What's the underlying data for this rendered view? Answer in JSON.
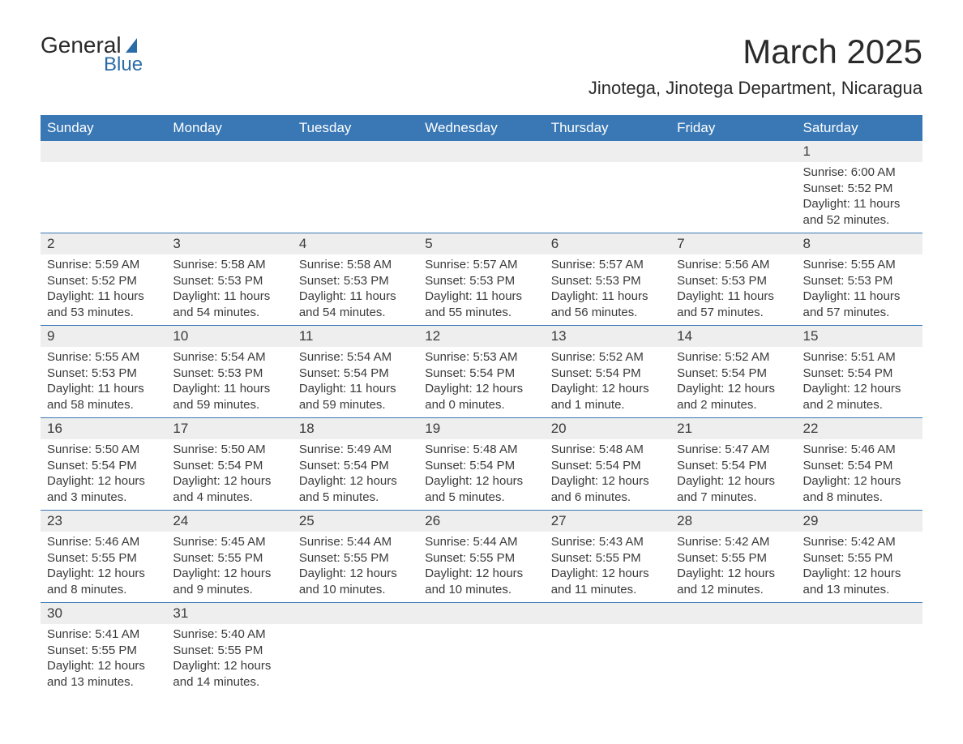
{
  "logo": {
    "word1": "General",
    "word2": "Blue"
  },
  "title": "March 2025",
  "location": "Jinotega, Jinotega Department, Nicaragua",
  "colors": {
    "header_bg": "#3978b5",
    "header_text": "#ffffff",
    "number_bg": "#eeeeee",
    "text": "#3a3a3a",
    "logo_blue": "#2b6ca8"
  },
  "day_names": [
    "Sunday",
    "Monday",
    "Tuesday",
    "Wednesday",
    "Thursday",
    "Friday",
    "Saturday"
  ],
  "weeks": [
    [
      null,
      null,
      null,
      null,
      null,
      null,
      {
        "num": "1",
        "sunrise": "Sunrise: 6:00 AM",
        "sunset": "Sunset: 5:52 PM",
        "daylight1": "Daylight: 11 hours",
        "daylight2": "and 52 minutes."
      }
    ],
    [
      {
        "num": "2",
        "sunrise": "Sunrise: 5:59 AM",
        "sunset": "Sunset: 5:52 PM",
        "daylight1": "Daylight: 11 hours",
        "daylight2": "and 53 minutes."
      },
      {
        "num": "3",
        "sunrise": "Sunrise: 5:58 AM",
        "sunset": "Sunset: 5:53 PM",
        "daylight1": "Daylight: 11 hours",
        "daylight2": "and 54 minutes."
      },
      {
        "num": "4",
        "sunrise": "Sunrise: 5:58 AM",
        "sunset": "Sunset: 5:53 PM",
        "daylight1": "Daylight: 11 hours",
        "daylight2": "and 54 minutes."
      },
      {
        "num": "5",
        "sunrise": "Sunrise: 5:57 AM",
        "sunset": "Sunset: 5:53 PM",
        "daylight1": "Daylight: 11 hours",
        "daylight2": "and 55 minutes."
      },
      {
        "num": "6",
        "sunrise": "Sunrise: 5:57 AM",
        "sunset": "Sunset: 5:53 PM",
        "daylight1": "Daylight: 11 hours",
        "daylight2": "and 56 minutes."
      },
      {
        "num": "7",
        "sunrise": "Sunrise: 5:56 AM",
        "sunset": "Sunset: 5:53 PM",
        "daylight1": "Daylight: 11 hours",
        "daylight2": "and 57 minutes."
      },
      {
        "num": "8",
        "sunrise": "Sunrise: 5:55 AM",
        "sunset": "Sunset: 5:53 PM",
        "daylight1": "Daylight: 11 hours",
        "daylight2": "and 57 minutes."
      }
    ],
    [
      {
        "num": "9",
        "sunrise": "Sunrise: 5:55 AM",
        "sunset": "Sunset: 5:53 PM",
        "daylight1": "Daylight: 11 hours",
        "daylight2": "and 58 minutes."
      },
      {
        "num": "10",
        "sunrise": "Sunrise: 5:54 AM",
        "sunset": "Sunset: 5:53 PM",
        "daylight1": "Daylight: 11 hours",
        "daylight2": "and 59 minutes."
      },
      {
        "num": "11",
        "sunrise": "Sunrise: 5:54 AM",
        "sunset": "Sunset: 5:54 PM",
        "daylight1": "Daylight: 11 hours",
        "daylight2": "and 59 minutes."
      },
      {
        "num": "12",
        "sunrise": "Sunrise: 5:53 AM",
        "sunset": "Sunset: 5:54 PM",
        "daylight1": "Daylight: 12 hours",
        "daylight2": "and 0 minutes."
      },
      {
        "num": "13",
        "sunrise": "Sunrise: 5:52 AM",
        "sunset": "Sunset: 5:54 PM",
        "daylight1": "Daylight: 12 hours",
        "daylight2": "and 1 minute."
      },
      {
        "num": "14",
        "sunrise": "Sunrise: 5:52 AM",
        "sunset": "Sunset: 5:54 PM",
        "daylight1": "Daylight: 12 hours",
        "daylight2": "and 2 minutes."
      },
      {
        "num": "15",
        "sunrise": "Sunrise: 5:51 AM",
        "sunset": "Sunset: 5:54 PM",
        "daylight1": "Daylight: 12 hours",
        "daylight2": "and 2 minutes."
      }
    ],
    [
      {
        "num": "16",
        "sunrise": "Sunrise: 5:50 AM",
        "sunset": "Sunset: 5:54 PM",
        "daylight1": "Daylight: 12 hours",
        "daylight2": "and 3 minutes."
      },
      {
        "num": "17",
        "sunrise": "Sunrise: 5:50 AM",
        "sunset": "Sunset: 5:54 PM",
        "daylight1": "Daylight: 12 hours",
        "daylight2": "and 4 minutes."
      },
      {
        "num": "18",
        "sunrise": "Sunrise: 5:49 AM",
        "sunset": "Sunset: 5:54 PM",
        "daylight1": "Daylight: 12 hours",
        "daylight2": "and 5 minutes."
      },
      {
        "num": "19",
        "sunrise": "Sunrise: 5:48 AM",
        "sunset": "Sunset: 5:54 PM",
        "daylight1": "Daylight: 12 hours",
        "daylight2": "and 5 minutes."
      },
      {
        "num": "20",
        "sunrise": "Sunrise: 5:48 AM",
        "sunset": "Sunset: 5:54 PM",
        "daylight1": "Daylight: 12 hours",
        "daylight2": "and 6 minutes."
      },
      {
        "num": "21",
        "sunrise": "Sunrise: 5:47 AM",
        "sunset": "Sunset: 5:54 PM",
        "daylight1": "Daylight: 12 hours",
        "daylight2": "and 7 minutes."
      },
      {
        "num": "22",
        "sunrise": "Sunrise: 5:46 AM",
        "sunset": "Sunset: 5:54 PM",
        "daylight1": "Daylight: 12 hours",
        "daylight2": "and 8 minutes."
      }
    ],
    [
      {
        "num": "23",
        "sunrise": "Sunrise: 5:46 AM",
        "sunset": "Sunset: 5:55 PM",
        "daylight1": "Daylight: 12 hours",
        "daylight2": "and 8 minutes."
      },
      {
        "num": "24",
        "sunrise": "Sunrise: 5:45 AM",
        "sunset": "Sunset: 5:55 PM",
        "daylight1": "Daylight: 12 hours",
        "daylight2": "and 9 minutes."
      },
      {
        "num": "25",
        "sunrise": "Sunrise: 5:44 AM",
        "sunset": "Sunset: 5:55 PM",
        "daylight1": "Daylight: 12 hours",
        "daylight2": "and 10 minutes."
      },
      {
        "num": "26",
        "sunrise": "Sunrise: 5:44 AM",
        "sunset": "Sunset: 5:55 PM",
        "daylight1": "Daylight: 12 hours",
        "daylight2": "and 10 minutes."
      },
      {
        "num": "27",
        "sunrise": "Sunrise: 5:43 AM",
        "sunset": "Sunset: 5:55 PM",
        "daylight1": "Daylight: 12 hours",
        "daylight2": "and 11 minutes."
      },
      {
        "num": "28",
        "sunrise": "Sunrise: 5:42 AM",
        "sunset": "Sunset: 5:55 PM",
        "daylight1": "Daylight: 12 hours",
        "daylight2": "and 12 minutes."
      },
      {
        "num": "29",
        "sunrise": "Sunrise: 5:42 AM",
        "sunset": "Sunset: 5:55 PM",
        "daylight1": "Daylight: 12 hours",
        "daylight2": "and 13 minutes."
      }
    ],
    [
      {
        "num": "30",
        "sunrise": "Sunrise: 5:41 AM",
        "sunset": "Sunset: 5:55 PM",
        "daylight1": "Daylight: 12 hours",
        "daylight2": "and 13 minutes."
      },
      {
        "num": "31",
        "sunrise": "Sunrise: 5:40 AM",
        "sunset": "Sunset: 5:55 PM",
        "daylight1": "Daylight: 12 hours",
        "daylight2": "and 14 minutes."
      },
      null,
      null,
      null,
      null,
      null
    ]
  ]
}
